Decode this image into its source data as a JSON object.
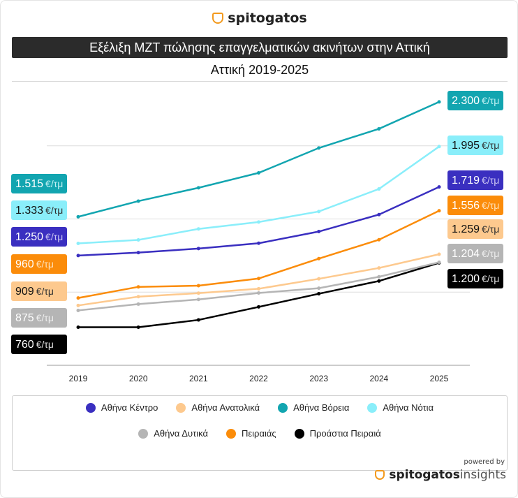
{
  "header": {
    "brand": "spitogatos",
    "title": "Εξέλιξη ΜΖΤ πώλησης επαγγελματικών ακινήτων στην Αττική",
    "subtitle": "Αττική 2019-2025"
  },
  "footer": {
    "powered_by": "powered by",
    "brand_bold": "spitogatos",
    "brand_light": "insights"
  },
  "chart_data": {
    "type": "line",
    "title": "Εξέλιξη ΜΖΤ πώλησης επαγγελματικών ακινήτων στην Αττική",
    "subtitle": "Αττική 2019-2025",
    "x": [
      "2019",
      "2020",
      "2021",
      "2022",
      "2023",
      "2024",
      "2025"
    ],
    "ylim": [
      500,
      2500
    ],
    "grid": true,
    "legend": "bottom",
    "unit": "€/τμ",
    "series": [
      {
        "name": "Αθήνα Βόρεια",
        "color": "#12a5b0",
        "text": "#ffffff",
        "unitColor": "#bff0f3",
        "values": [
          1515,
          1622,
          1713,
          1815,
          1985,
          2116,
          2300
        ],
        "first_label": "1.515",
        "last_label": "2.300"
      },
      {
        "name": "Αθήνα Νότια",
        "color": "#8aeefa",
        "text": "#111111",
        "unitColor": "#333333",
        "values": [
          1333,
          1357,
          1432,
          1479,
          1551,
          1705,
          1995
        ],
        "first_label": "1.333",
        "last_label": "1.995"
      },
      {
        "name": "Αθήνα Κέντρο",
        "color": "#3a2fc0",
        "text": "#ffffff",
        "unitColor": "#c9c4f2",
        "values": [
          1250,
          1270,
          1298,
          1334,
          1414,
          1530,
          1719
        ],
        "first_label": "1.250",
        "last_label": "1.719"
      },
      {
        "name": "Πειραιάς",
        "color": "#fb8c0a",
        "text": "#ffffff",
        "unitColor": "#ffe0b8",
        "values": [
          960,
          1036,
          1044,
          1093,
          1229,
          1358,
          1556
        ],
        "first_label": "960",
        "last_label": "1.556"
      },
      {
        "name": "Αθήνα Ανατολικά",
        "color": "#fdc98e",
        "text": "#111111",
        "unitColor": "#333333",
        "values": [
          909,
          969,
          993,
          1023,
          1091,
          1165,
          1259
        ],
        "first_label": "909",
        "last_label": "1.259"
      },
      {
        "name": "Αθήνα Δυτικά",
        "color": "#b5b5b5",
        "text": "#ffffff",
        "unitColor": "#eeeeee",
        "values": [
          875,
          918,
          950,
          994,
          1027,
          1105,
          1204
        ],
        "first_label": "875",
        "last_label": "1.204"
      },
      {
        "name": "Προάστια Πειραιά",
        "color": "#000000",
        "text": "#ffffff",
        "unitColor": "#dddddd",
        "values": [
          760,
          760,
          810,
          899,
          989,
          1076,
          1200
        ],
        "first_label": "760",
        "last_label": "1.200"
      }
    ],
    "legend_order": [
      [
        "Αθήνα Κέντρο",
        "Αθήνα Ανατολικά",
        "Αθήνα Βόρεια",
        "Αθήνα Νότια"
      ],
      [
        "Αθήνα Δυτικά",
        "Πειραιάς",
        "Προάστια Πειραιά"
      ]
    ]
  }
}
